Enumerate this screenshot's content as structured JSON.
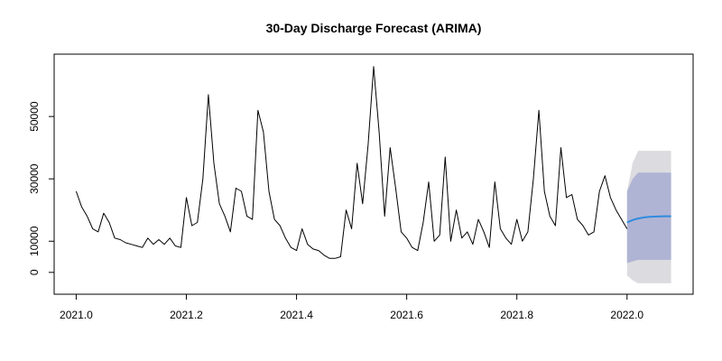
{
  "chart_data": {
    "type": "line",
    "title": "30-Day Discharge Forecast (ARIMA)",
    "xlabel": "",
    "ylabel": "",
    "xlim": [
      2021.0,
      2022.08
    ],
    "ylim": [
      -4000,
      68000
    ],
    "x_ticks": [
      2021.0,
      2021.2,
      2021.4,
      2021.6,
      2021.8,
      2022.0
    ],
    "x_tick_labels": [
      "2021.0",
      "2021.2",
      "2021.4",
      "2021.6",
      "2021.8",
      "2022.0"
    ],
    "y_ticks": [
      0,
      10000,
      30000,
      50000
    ],
    "y_tick_labels": [
      "0",
      "10000",
      "30000",
      "50000"
    ],
    "grid": false,
    "series": [
      {
        "role": "observed",
        "color": "#000000",
        "x": [
          2021.0,
          2021.01,
          2021.02,
          2021.03,
          2021.04,
          2021.05,
          2021.06,
          2021.07,
          2021.08,
          2021.09,
          2021.1,
          2021.11,
          2021.12,
          2021.13,
          2021.14,
          2021.15,
          2021.16,
          2021.17,
          2021.18,
          2021.19,
          2021.2,
          2021.21,
          2021.22,
          2021.23,
          2021.24,
          2021.25,
          2021.26,
          2021.27,
          2021.28,
          2021.29,
          2021.3,
          2021.31,
          2021.32,
          2021.33,
          2021.34,
          2021.35,
          2021.36,
          2021.37,
          2021.38,
          2021.39,
          2021.4,
          2021.41,
          2021.42,
          2021.43,
          2021.44,
          2021.45,
          2021.46,
          2021.47,
          2021.48,
          2021.49,
          2021.5,
          2021.51,
          2021.52,
          2021.53,
          2021.54,
          2021.55,
          2021.56,
          2021.57,
          2021.58,
          2021.59,
          2021.6,
          2021.61,
          2021.62,
          2021.63,
          2021.64,
          2021.65,
          2021.66,
          2021.67,
          2021.68,
          2021.69,
          2021.7,
          2021.71,
          2021.72,
          2021.73,
          2021.74,
          2021.75,
          2021.76,
          2021.77,
          2021.78,
          2021.79,
          2021.8,
          2021.81,
          2021.82,
          2021.83,
          2021.84,
          2021.85,
          2021.86,
          2021.87,
          2021.88,
          2021.89,
          2021.9,
          2021.91,
          2021.92,
          2021.93,
          2021.94,
          2021.95,
          2021.96,
          2021.97,
          2021.98,
          2021.99,
          2022.0
        ],
        "y": [
          26000,
          21000,
          18000,
          14000,
          13000,
          19000,
          16000,
          11000,
          10500,
          9500,
          9000,
          8500,
          8000,
          11000,
          9000,
          10500,
          9000,
          11000,
          8500,
          8000,
          24000,
          15000,
          16000,
          30000,
          57000,
          35000,
          22000,
          18000,
          13000,
          27000,
          26000,
          18000,
          17000,
          52000,
          45000,
          26000,
          17000,
          15000,
          11000,
          8000,
          7000,
          14000,
          9000,
          7500,
          7000,
          5500,
          4500,
          4500,
          5000,
          20000,
          14000,
          35000,
          22000,
          41000,
          66000,
          45000,
          18000,
          40000,
          27000,
          13000,
          11000,
          8000,
          7000,
          16000,
          29000,
          10000,
          12000,
          37000,
          10000,
          20000,
          11000,
          13000,
          9000,
          17000,
          13000,
          8000,
          29000,
          14000,
          11000,
          9000,
          17000,
          10000,
          13000,
          30000,
          52000,
          26000,
          18000,
          15000,
          40000,
          24000,
          25000,
          17000,
          15000,
          12000,
          13000,
          26000,
          31000,
          24000,
          20000,
          17000,
          14000
        ]
      },
      {
        "role": "forecast",
        "color": "#2f8bdf",
        "x": [
          2022.0,
          2022.01,
          2022.02,
          2022.03,
          2022.04,
          2022.05,
          2022.06,
          2022.07,
          2022.08
        ],
        "y": [
          16000,
          16800,
          17300,
          17600,
          17800,
          17900,
          17950,
          18000,
          18000
        ]
      }
    ],
    "intervals": [
      {
        "level": "outer",
        "color": "#dcdce0",
        "x": [
          2022.0,
          2022.01,
          2022.02,
          2022.08
        ],
        "lower": [
          -1000,
          -2500,
          -3500,
          -3500
        ],
        "upper": [
          26000,
          35000,
          39000,
          39000
        ]
      },
      {
        "level": "inner",
        "color": "#b0b4d4",
        "x": [
          2022.0,
          2022.01,
          2022.02,
          2022.08
        ],
        "lower": [
          3000,
          3500,
          4000,
          4000
        ],
        "upper": [
          26000,
          30000,
          32000,
          32000
        ]
      }
    ]
  }
}
